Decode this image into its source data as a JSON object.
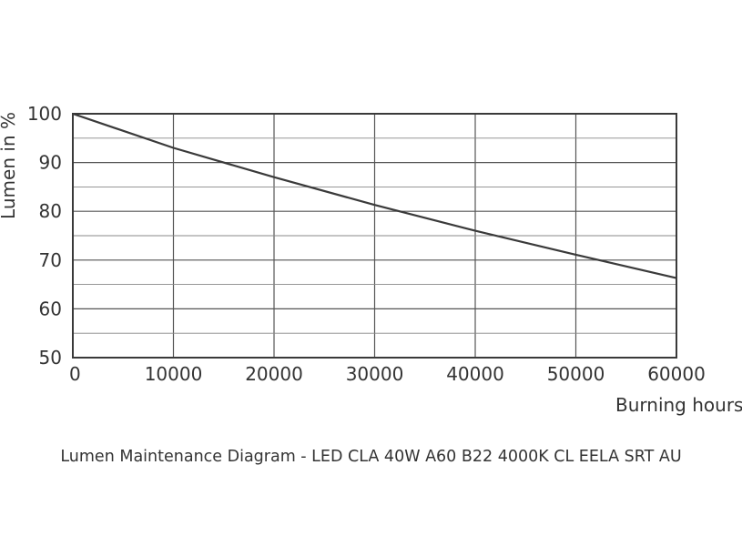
{
  "caption": "Lumen Maintenance Diagram - LED CLA 40W A60 B22 4000K CL EELA SRT AU",
  "colors": {
    "line": "#3a3a3a",
    "grid": "#555555",
    "frame": "#3a3a3a",
    "text": "#333333"
  },
  "chart_data": {
    "type": "line",
    "title": "",
    "xlabel": "Burning hours",
    "ylabel": "Lumen in %",
    "xlim": [
      0,
      60000
    ],
    "ylim": [
      50,
      100
    ],
    "x_ticks": [
      0,
      10000,
      20000,
      30000,
      40000,
      50000,
      60000
    ],
    "x_tick_labels": [
      "0",
      "10000",
      "20000",
      "30000",
      "40000",
      "50000",
      "60000"
    ],
    "y_ticks": [
      50,
      60,
      70,
      80,
      90,
      100
    ],
    "y_tick_labels": [
      "50",
      "60",
      "70",
      "80",
      "90",
      "100"
    ],
    "y_minor_gridlines": [
      55,
      65,
      75,
      85,
      95
    ],
    "grid": true,
    "series": [
      {
        "x": [
          0,
          10000,
          20000,
          30000,
          40000,
          50000,
          60000
        ],
        "y": [
          100,
          93,
          87,
          81.3,
          76,
          71.1,
          66.3
        ]
      }
    ]
  }
}
